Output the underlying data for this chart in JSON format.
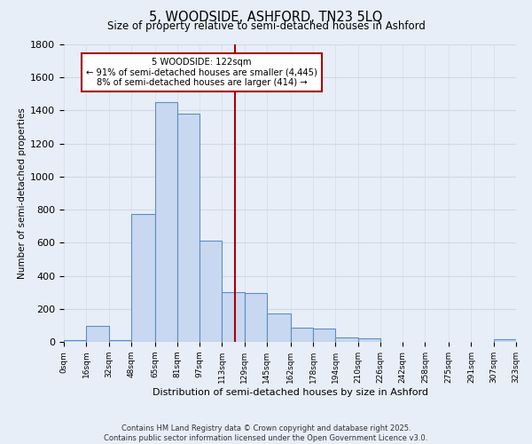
{
  "title": "5, WOODSIDE, ASHFORD, TN23 5LQ",
  "subtitle": "Size of property relative to semi-detached houses in Ashford",
  "xlabel": "Distribution of semi-detached houses by size in Ashford",
  "ylabel": "Number of semi-detached properties",
  "annotation_label": "5 WOODSIDE: 122sqm",
  "annotation_line1": "← 91% of semi-detached houses are smaller (4,445)",
  "annotation_line2": "8% of semi-detached houses are larger (414) →",
  "property_size": 122,
  "bin_edges": [
    0,
    16,
    32,
    48,
    65,
    81,
    97,
    113,
    129,
    145,
    162,
    178,
    194,
    210,
    226,
    242,
    258,
    275,
    291,
    307,
    323
  ],
  "bar_heights": [
    10,
    95,
    10,
    775,
    1450,
    1380,
    610,
    300,
    295,
    170,
    85,
    80,
    25,
    20,
    0,
    0,
    0,
    0,
    0,
    15
  ],
  "bar_color": "#c8d8f0",
  "bar_edge_color": "#5b8fc4",
  "vline_color": "#aa0000",
  "annotation_box_color": "#aa0000",
  "background_color": "#e8eef8",
  "grid_color": "#d0d8e8",
  "ylim": [
    0,
    1800
  ],
  "yticks": [
    0,
    200,
    400,
    600,
    800,
    1000,
    1200,
    1400,
    1600,
    1800
  ],
  "tick_labels": [
    "0sqm",
    "16sqm",
    "32sqm",
    "48sqm",
    "65sqm",
    "81sqm",
    "97sqm",
    "113sqm",
    "129sqm",
    "145sqm",
    "162sqm",
    "178sqm",
    "194sqm",
    "210sqm",
    "226sqm",
    "242sqm",
    "258sqm",
    "275sqm",
    "291sqm",
    "307sqm",
    "323sqm"
  ],
  "footer_line1": "Contains HM Land Registry data © Crown copyright and database right 2025.",
  "footer_line2": "Contains public sector information licensed under the Open Government Licence v3.0."
}
